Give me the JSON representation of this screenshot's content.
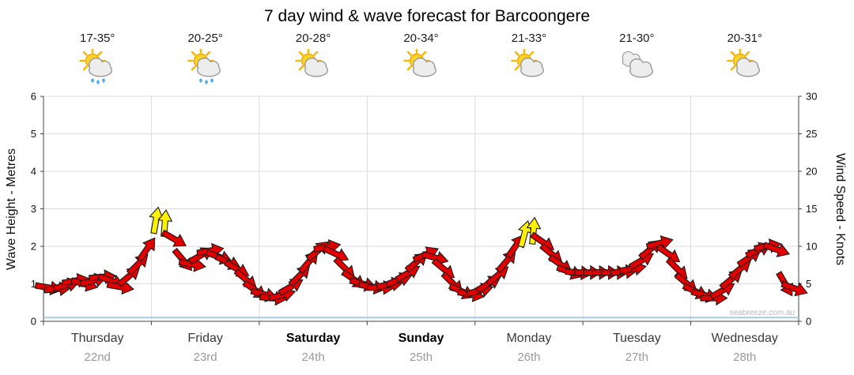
{
  "title": "7 day wind & wave forecast for Barcoongere",
  "watermark": "seabreeze.com.au",
  "axes": {
    "left_label": "Wave Height - Metres",
    "right_label": "Wind Speed - Knots",
    "left_ticks": [
      0,
      1,
      2,
      3,
      4,
      5,
      6
    ],
    "right_ticks": [
      0,
      5,
      10,
      15,
      20,
      25,
      30
    ]
  },
  "days": [
    {
      "name": "Thursday",
      "date": "22nd",
      "temp": "17-35°",
      "icon": "sun-cloud-rain",
      "weekend": false
    },
    {
      "name": "Friday",
      "date": "23rd",
      "temp": "20-25°",
      "icon": "sun-cloud-rain",
      "weekend": false
    },
    {
      "name": "Saturday",
      "date": "24th",
      "temp": "20-28°",
      "icon": "sun-cloud",
      "weekend": true
    },
    {
      "name": "Sunday",
      "date": "25th",
      "temp": "20-34°",
      "icon": "sun-cloud",
      "weekend": true
    },
    {
      "name": "Monday",
      "date": "26th",
      "temp": "21-33°",
      "icon": "sun-cloud",
      "weekend": false
    },
    {
      "name": "Tuesday",
      "date": "27th",
      "temp": "21-30°",
      "icon": "cloud",
      "weekend": false
    },
    {
      "name": "Wednesday",
      "date": "28th",
      "temp": "20-31°",
      "icon": "sun-cloud",
      "weekend": false
    }
  ],
  "chart_data": {
    "type": "line",
    "subtype": "wind-arrow-forecast",
    "x_unit": "hours-from-thursday-00",
    "interval_hours": 2,
    "ylim_left_metres": [
      0,
      6
    ],
    "ylim_right_knots": [
      0,
      30
    ],
    "grid": true,
    "wave_height_m": 0.1,
    "wave_line_color": "#a6cbe8",
    "arrow_colors": [
      "#e10000",
      "#fff200"
    ],
    "arrow_outline": "#1a1a1a",
    "points_format": [
      "wind_knots",
      "arrow_angle_deg_up_from_east",
      "color_index"
    ],
    "points": [
      [
        4.5,
        -10,
        0
      ],
      [
        4.3,
        5,
        0
      ],
      [
        4.8,
        15,
        0
      ],
      [
        5.4,
        10,
        0
      ],
      [
        5.0,
        -15,
        0
      ],
      [
        5.4,
        15,
        0
      ],
      [
        5.9,
        5,
        0
      ],
      [
        5.4,
        -20,
        0
      ],
      [
        4.6,
        -10,
        0
      ],
      [
        6.0,
        40,
        0
      ],
      [
        7.6,
        45,
        0
      ],
      [
        9.6,
        55,
        0
      ],
      [
        13.4,
        80,
        1
      ],
      [
        13.0,
        85,
        1
      ],
      [
        11.0,
        -30,
        0
      ],
      [
        8.2,
        -50,
        0
      ],
      [
        7.6,
        -10,
        0
      ],
      [
        8.8,
        30,
        0
      ],
      [
        9.4,
        10,
        0
      ],
      [
        8.6,
        -20,
        0
      ],
      [
        7.9,
        -25,
        0
      ],
      [
        7.0,
        -30,
        0
      ],
      [
        5.6,
        -40,
        0
      ],
      [
        4.2,
        -35,
        0
      ],
      [
        3.6,
        -15,
        0
      ],
      [
        3.1,
        -5,
        0
      ],
      [
        3.5,
        15,
        0
      ],
      [
        4.6,
        30,
        0
      ],
      [
        6.1,
        45,
        0
      ],
      [
        7.9,
        50,
        0
      ],
      [
        9.4,
        40,
        0
      ],
      [
        9.9,
        10,
        0
      ],
      [
        9.0,
        -25,
        0
      ],
      [
        7.1,
        -45,
        0
      ],
      [
        5.6,
        -35,
        0
      ],
      [
        5.0,
        -15,
        0
      ],
      [
        4.6,
        -10,
        0
      ],
      [
        4.5,
        0,
        0
      ],
      [
        4.9,
        10,
        0
      ],
      [
        5.5,
        20,
        0
      ],
      [
        6.4,
        30,
        0
      ],
      [
        7.9,
        40,
        0
      ],
      [
        8.9,
        25,
        0
      ],
      [
        8.5,
        -15,
        0
      ],
      [
        7.0,
        -40,
        0
      ],
      [
        5.1,
        -45,
        0
      ],
      [
        4.0,
        -25,
        0
      ],
      [
        3.6,
        -10,
        0
      ],
      [
        4.1,
        15,
        0
      ],
      [
        5.0,
        30,
        0
      ],
      [
        6.1,
        40,
        0
      ],
      [
        8.0,
        50,
        0
      ],
      [
        10.0,
        55,
        0
      ],
      [
        11.6,
        75,
        1
      ],
      [
        12.0,
        85,
        1
      ],
      [
        10.6,
        -35,
        0
      ],
      [
        9.0,
        -40,
        0
      ],
      [
        7.6,
        -35,
        0
      ],
      [
        6.6,
        -20,
        0
      ],
      [
        6.5,
        -5,
        0
      ],
      [
        6.5,
        0,
        0
      ],
      [
        6.5,
        0,
        0
      ],
      [
        6.5,
        0,
        0
      ],
      [
        6.5,
        0,
        0
      ],
      [
        6.6,
        5,
        0
      ],
      [
        7.0,
        10,
        0
      ],
      [
        8.1,
        30,
        0
      ],
      [
        9.6,
        40,
        0
      ],
      [
        10.4,
        15,
        0
      ],
      [
        9.0,
        -35,
        0
      ],
      [
        7.0,
        -45,
        0
      ],
      [
        5.1,
        -40,
        0
      ],
      [
        4.0,
        -25,
        0
      ],
      [
        3.5,
        -15,
        0
      ],
      [
        3.1,
        0,
        0
      ],
      [
        4.1,
        30,
        0
      ],
      [
        5.6,
        40,
        0
      ],
      [
        7.0,
        40,
        0
      ],
      [
        8.5,
        35,
        0
      ],
      [
        9.5,
        25,
        0
      ],
      [
        10.0,
        10,
        0
      ],
      [
        9.6,
        -20,
        0
      ],
      [
        5.0,
        -60,
        0
      ],
      [
        4.4,
        -20,
        0
      ]
    ]
  }
}
